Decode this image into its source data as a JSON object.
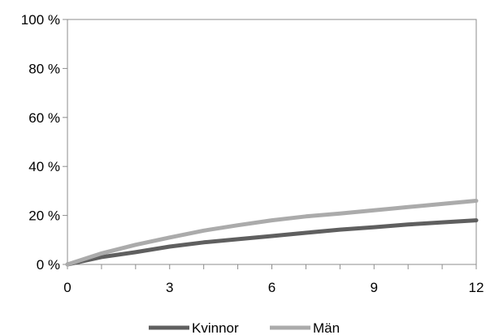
{
  "chart_data": {
    "type": "line",
    "title": "",
    "xlabel": "",
    "ylabel": "",
    "xlim": [
      0,
      12
    ],
    "ylim": [
      0,
      100
    ],
    "x_ticks": [
      "0",
      "3",
      "6",
      "9",
      "12"
    ],
    "y_ticks": [
      "0 %",
      "20 %",
      "40 %",
      "60 %",
      "80 %",
      "100 %"
    ],
    "grid": false,
    "legend_position": "bottom",
    "series": [
      {
        "name": "Kvinnor",
        "color": "#5f5f5f",
        "x": [
          0,
          1,
          2,
          3,
          4,
          5,
          6,
          7,
          8,
          9,
          10,
          11,
          12
        ],
        "y": [
          0,
          3,
          5,
          7.3,
          9,
          10.3,
          11.6,
          12.9,
          14.2,
          15.2,
          16.3,
          17.2,
          18
        ]
      },
      {
        "name": "Män",
        "color": "#ababab",
        "x": [
          0,
          1,
          2,
          3,
          4,
          5,
          6,
          7,
          8,
          9,
          10,
          11,
          12
        ],
        "y": [
          0,
          4.5,
          8,
          11,
          13.8,
          16,
          18,
          19.6,
          20.8,
          22.1,
          23.4,
          24.7,
          26
        ]
      }
    ]
  }
}
